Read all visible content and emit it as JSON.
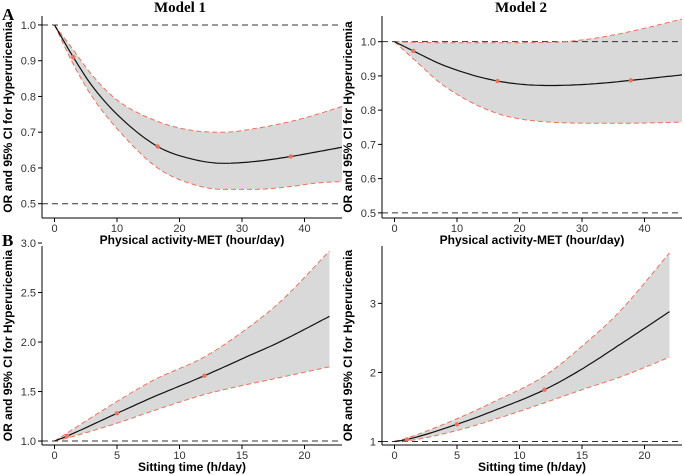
{
  "figure": {
    "column_titles": [
      "Model 1",
      "Model 2"
    ],
    "row_labels": [
      "A",
      "B"
    ]
  },
  "chart_data": [
    {
      "id": "A1",
      "type": "line",
      "title": "Model 1",
      "panel_label": "A",
      "xlabel": "Physical activity-MET (hour/day)",
      "ylabel": "OR and 95% CI for Hyperuricemia",
      "xlim": [
        -2,
        46
      ],
      "ylim": [
        0.46,
        1.025
      ],
      "xticks": [
        0,
        10,
        20,
        30,
        40
      ],
      "yticks": [
        0.5,
        0.6,
        0.7,
        0.8,
        0.9,
        1.0
      ],
      "ytick_labels": [
        "0.5",
        "0.6",
        "0.7",
        "0.8",
        "0.9",
        "1.0"
      ],
      "reference_lines": [
        1.0,
        0.5
      ],
      "grid": false,
      "series": [
        {
          "role": "estimate",
          "x": [
            0,
            3,
            6,
            10,
            16.5,
            22,
            27,
            32,
            37.8,
            42,
            46
          ],
          "y": [
            1.0,
            0.91,
            0.83,
            0.75,
            0.66,
            0.625,
            0.613,
            0.618,
            0.632,
            0.645,
            0.658
          ]
        },
        {
          "role": "ci_upper",
          "x": [
            0,
            3,
            6,
            10,
            16.5,
            22,
            27,
            32,
            37.8,
            42,
            46
          ],
          "y": [
            1.0,
            0.93,
            0.86,
            0.79,
            0.73,
            0.705,
            0.7,
            0.71,
            0.73,
            0.75,
            0.772
          ]
        },
        {
          "role": "ci_lower",
          "x": [
            0,
            3,
            6,
            10,
            16.5,
            22,
            27,
            32,
            37.8,
            42,
            46
          ],
          "y": [
            1.0,
            0.89,
            0.8,
            0.71,
            0.6,
            0.555,
            0.54,
            0.54,
            0.548,
            0.558,
            0.562
          ]
        }
      ],
      "knots": {
        "x": [
          3,
          16.5,
          37.8
        ],
        "y": [
          0.91,
          0.66,
          0.632
        ]
      }
    },
    {
      "id": "A2",
      "type": "line",
      "title": "Model 2",
      "panel_label": "",
      "xlabel": "Physical activity-MET (hour/day)",
      "ylabel": "OR and 95% CI for Hyperuricemia",
      "xlim": [
        -2,
        46
      ],
      "ylim": [
        0.485,
        1.075
      ],
      "xticks": [
        0,
        10,
        20,
        30,
        40
      ],
      "yticks": [
        0.5,
        0.6,
        0.7,
        0.8,
        0.9,
        1.0
      ],
      "ytick_labels": [
        "0.5",
        "0.6",
        "0.7",
        "0.8",
        "0.9",
        "1.0"
      ],
      "reference_lines": [
        1.0,
        0.5
      ],
      "grid": false,
      "series": [
        {
          "role": "estimate",
          "x": [
            0,
            3,
            8,
            16.5,
            25,
            32,
            37.8,
            46
          ],
          "y": [
            1.0,
            0.973,
            0.93,
            0.885,
            0.872,
            0.877,
            0.887,
            0.903
          ]
        },
        {
          "role": "ci_upper",
          "x": [
            0,
            3,
            8,
            16.5,
            25,
            32,
            37.8,
            46
          ],
          "y": [
            1.0,
            0.998,
            0.997,
            0.997,
            0.998,
            1.01,
            1.03,
            1.066
          ]
        },
        {
          "role": "ci_lower",
          "x": [
            0,
            3,
            8,
            16.5,
            25,
            32,
            37.8,
            46
          ],
          "y": [
            1.0,
            0.95,
            0.87,
            0.79,
            0.765,
            0.762,
            0.762,
            0.765
          ]
        }
      ],
      "knots": {
        "x": [
          3,
          16.5,
          37.8
        ],
        "y": [
          0.973,
          0.885,
          0.887
        ]
      }
    },
    {
      "id": "B1",
      "type": "line",
      "title": "",
      "panel_label": "B",
      "xlabel": "Sitting time (h/day)",
      "ylabel": "OR and 95% CI for Hyperuricemia",
      "xlim": [
        -1,
        23
      ],
      "ylim": [
        0.96,
        2.97
      ],
      "xticks": [
        0,
        5,
        10,
        15,
        20
      ],
      "yticks": [
        1.0,
        1.5,
        2.0,
        2.5,
        3.0
      ],
      "ytick_labels": [
        "1.0",
        "1.5",
        "2.0",
        "2.5",
        "3.0"
      ],
      "reference_lines": [
        1.0
      ],
      "grid": false,
      "series": [
        {
          "role": "estimate",
          "x": [
            0,
            1,
            5,
            8,
            12,
            15,
            18,
            22
          ],
          "y": [
            1.0,
            1.05,
            1.28,
            1.45,
            1.66,
            1.83,
            2.0,
            2.26
          ]
        },
        {
          "role": "ci_upper",
          "x": [
            0,
            1,
            5,
            8,
            12,
            15,
            18,
            22
          ],
          "y": [
            1.0,
            1.08,
            1.4,
            1.62,
            1.85,
            2.1,
            2.4,
            2.92
          ]
        },
        {
          "role": "ci_lower",
          "x": [
            0,
            1,
            5,
            8,
            12,
            15,
            18,
            22
          ],
          "y": [
            1.0,
            1.03,
            1.18,
            1.31,
            1.47,
            1.56,
            1.64,
            1.75
          ]
        }
      ],
      "knots": {
        "x": [
          1,
          5,
          12
        ],
        "y": [
          1.05,
          1.28,
          1.66
        ]
      }
    },
    {
      "id": "B2",
      "type": "line",
      "title": "",
      "panel_label": "",
      "xlabel": "Sitting time (h/day)",
      "ylabel": "OR and 95% CI for Hyperuricemia",
      "xlim": [
        -1,
        23
      ],
      "ylim": [
        0.95,
        3.83
      ],
      "xticks": [
        0,
        5,
        10,
        15,
        20
      ],
      "yticks": [
        1,
        2,
        3
      ],
      "ytick_labels": [
        "1",
        "2",
        "3"
      ],
      "reference_lines": [
        1.0
      ],
      "grid": false,
      "series": [
        {
          "role": "estimate",
          "x": [
            0,
            1,
            5,
            8,
            12,
            15,
            18,
            22
          ],
          "y": [
            1.0,
            1.03,
            1.25,
            1.45,
            1.75,
            2.05,
            2.4,
            2.88
          ]
        },
        {
          "role": "ci_upper",
          "x": [
            0,
            1,
            5,
            8,
            12,
            15,
            18,
            22
          ],
          "y": [
            1.0,
            1.05,
            1.33,
            1.58,
            1.95,
            2.38,
            2.88,
            3.73
          ]
        },
        {
          "role": "ci_lower",
          "x": [
            0,
            1,
            5,
            8,
            12,
            15,
            18,
            22
          ],
          "y": [
            1.0,
            1.01,
            1.16,
            1.32,
            1.56,
            1.75,
            1.93,
            2.22
          ]
        }
      ],
      "knots": {
        "x": [
          1,
          5,
          12
        ],
        "y": [
          1.03,
          1.25,
          1.75
        ]
      }
    }
  ]
}
